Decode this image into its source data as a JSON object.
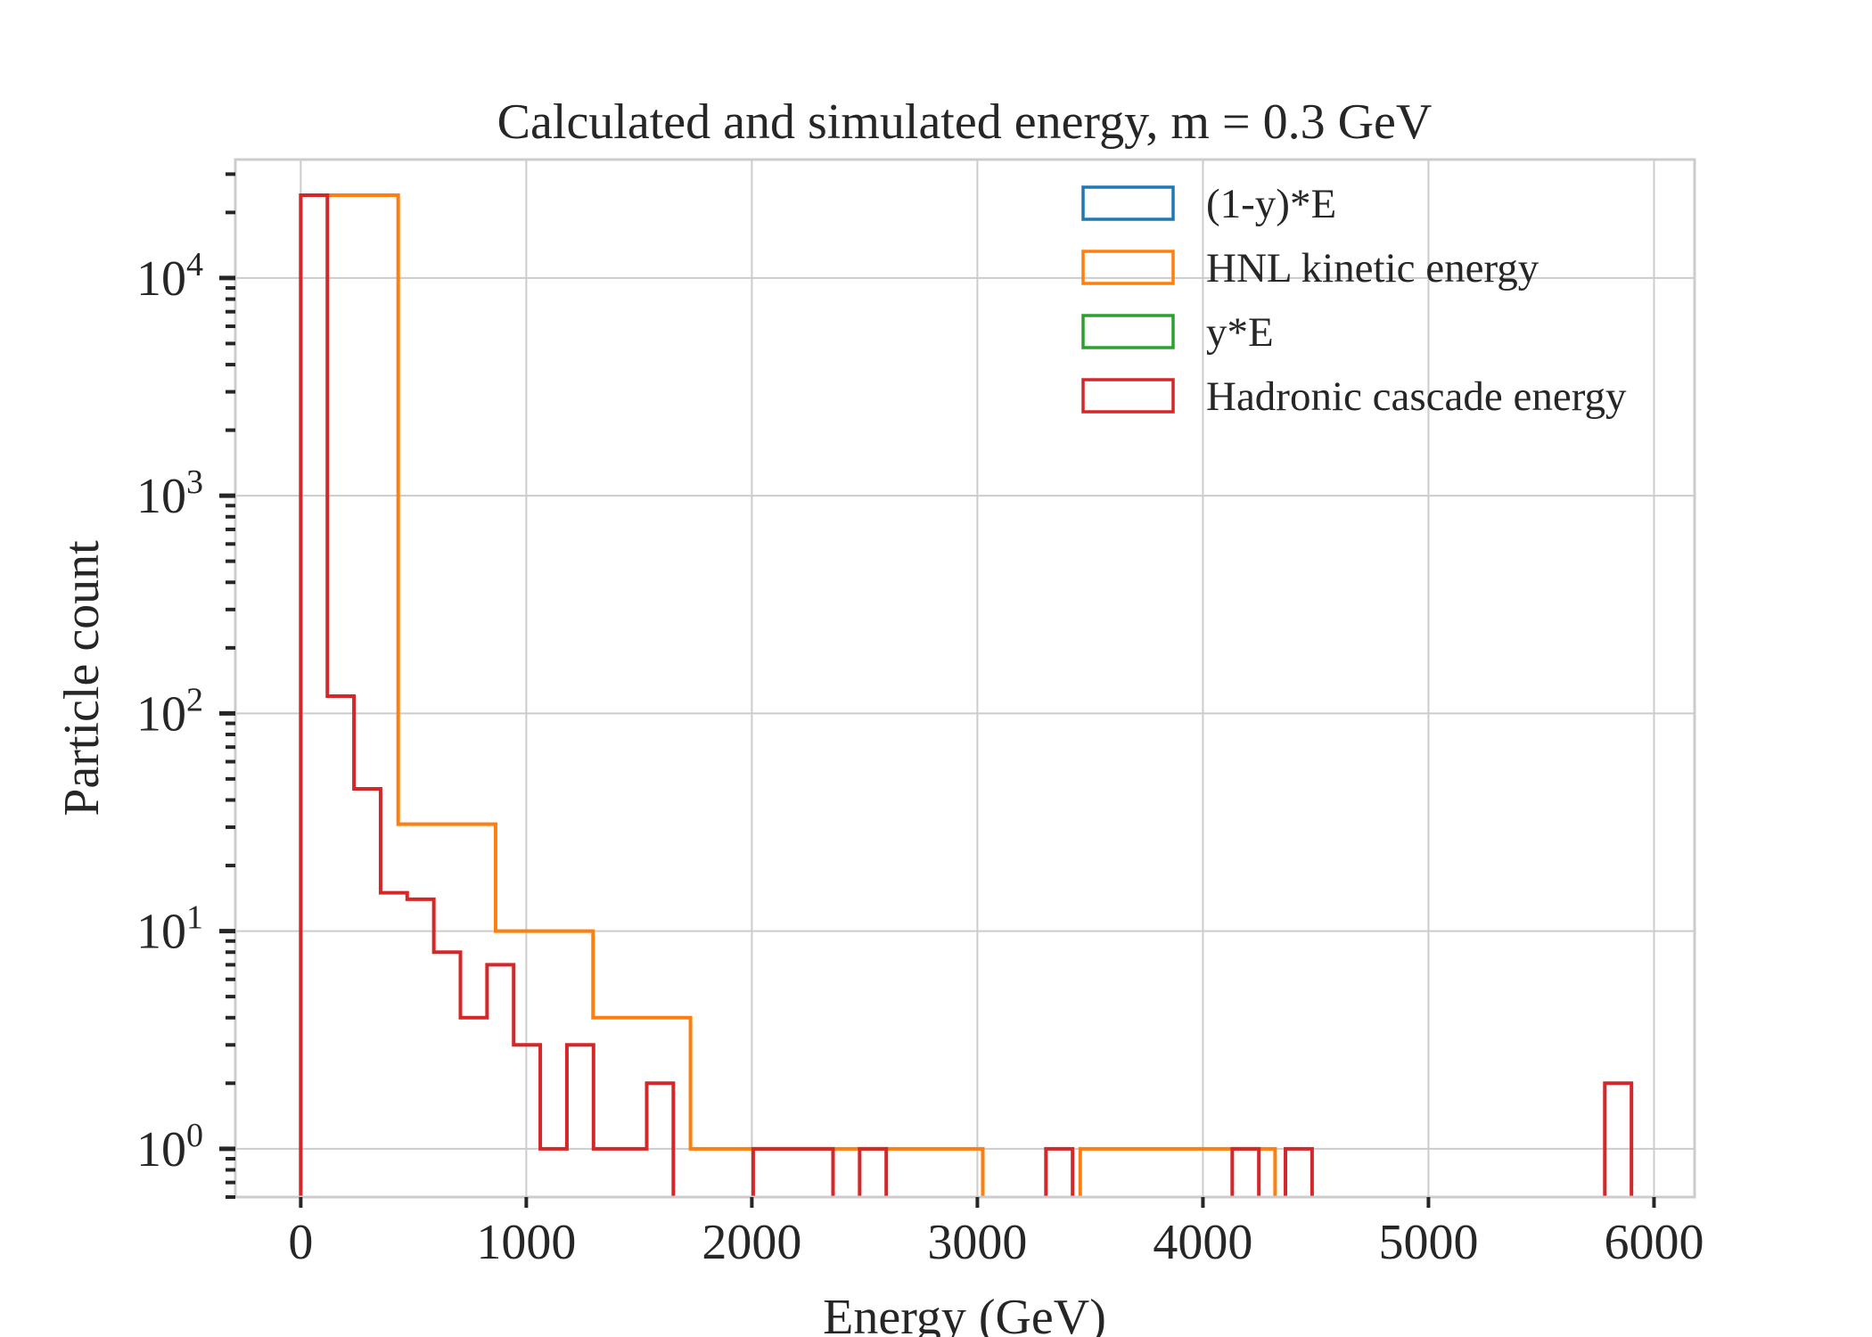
{
  "chart_data": {
    "type": "histogram",
    "title": "Calculated and simulated energy, m = 0.3 GeV",
    "xlabel": "Energy (GeV)",
    "ylabel": "Particle count",
    "xlim": [
      -290,
      6180
    ],
    "ylim": [
      0.6,
      35000
    ],
    "yscale": "log",
    "grid": true,
    "legend_position": "upper-right",
    "x_ticks": [
      {
        "value": 0,
        "label": "0"
      },
      {
        "value": 1000,
        "label": "1000"
      },
      {
        "value": 2000,
        "label": "2000"
      },
      {
        "value": 3000,
        "label": "3000"
      },
      {
        "value": 4000,
        "label": "4000"
      },
      {
        "value": 5000,
        "label": "5000"
      },
      {
        "value": 6000,
        "label": "6000"
      }
    ],
    "y_ticks": [
      {
        "value": 1,
        "base": "10",
        "exp": "0"
      },
      {
        "value": 10,
        "base": "10",
        "exp": "1"
      },
      {
        "value": 100,
        "base": "10",
        "exp": "2"
      },
      {
        "value": 1000,
        "base": "10",
        "exp": "3"
      },
      {
        "value": 10000,
        "base": "10",
        "exp": "4"
      }
    ],
    "series": [
      {
        "name": "(1-y)*E",
        "color": "#1f77b4",
        "bins": []
      },
      {
        "name": "HNL kinetic energy",
        "color": "#ff7f0e",
        "bins": [
          {
            "x0": 0,
            "x1": 432,
            "count": 24000
          },
          {
            "x0": 432,
            "x1": 864,
            "count": 31
          },
          {
            "x0": 864,
            "x1": 1296,
            "count": 10
          },
          {
            "x0": 1296,
            "x1": 1728,
            "count": 4
          },
          {
            "x0": 1728,
            "x1": 2160,
            "count": 1
          },
          {
            "x0": 2160,
            "x1": 2592,
            "count": 1
          },
          {
            "x0": 2592,
            "x1": 3024,
            "count": 1
          },
          {
            "x0": 3456,
            "x1": 3888,
            "count": 1
          },
          {
            "x0": 3888,
            "x1": 4320,
            "count": 1
          }
        ]
      },
      {
        "name": "y*E",
        "color": "#2ca02c",
        "bins": []
      },
      {
        "name": "Hadronic cascade energy",
        "color": "#d62728",
        "bins": [
          {
            "x0": 0,
            "x1": 118,
            "count": 24000
          },
          {
            "x0": 118,
            "x1": 236,
            "count": 120
          },
          {
            "x0": 236,
            "x1": 354,
            "count": 45
          },
          {
            "x0": 354,
            "x1": 472,
            "count": 15
          },
          {
            "x0": 472,
            "x1": 590,
            "count": 14
          },
          {
            "x0": 590,
            "x1": 708,
            "count": 8
          },
          {
            "x0": 708,
            "x1": 826,
            "count": 4
          },
          {
            "x0": 826,
            "x1": 944,
            "count": 7
          },
          {
            "x0": 944,
            "x1": 1062,
            "count": 3
          },
          {
            "x0": 1062,
            "x1": 1180,
            "count": 1
          },
          {
            "x0": 1180,
            "x1": 1298,
            "count": 3
          },
          {
            "x0": 1298,
            "x1": 1416,
            "count": 1
          },
          {
            "x0": 1416,
            "x1": 1534,
            "count": 1
          },
          {
            "x0": 1534,
            "x1": 1652,
            "count": 2
          },
          {
            "x0": 2006,
            "x1": 2124,
            "count": 1
          },
          {
            "x0": 2124,
            "x1": 2242,
            "count": 1
          },
          {
            "x0": 2242,
            "x1": 2360,
            "count": 1
          },
          {
            "x0": 2478,
            "x1": 2596,
            "count": 1
          },
          {
            "x0": 3304,
            "x1": 3422,
            "count": 1
          },
          {
            "x0": 4130,
            "x1": 4248,
            "count": 1
          },
          {
            "x0": 4366,
            "x1": 4484,
            "count": 1
          },
          {
            "x0": 5782,
            "x1": 5900,
            "count": 2
          }
        ]
      }
    ]
  }
}
